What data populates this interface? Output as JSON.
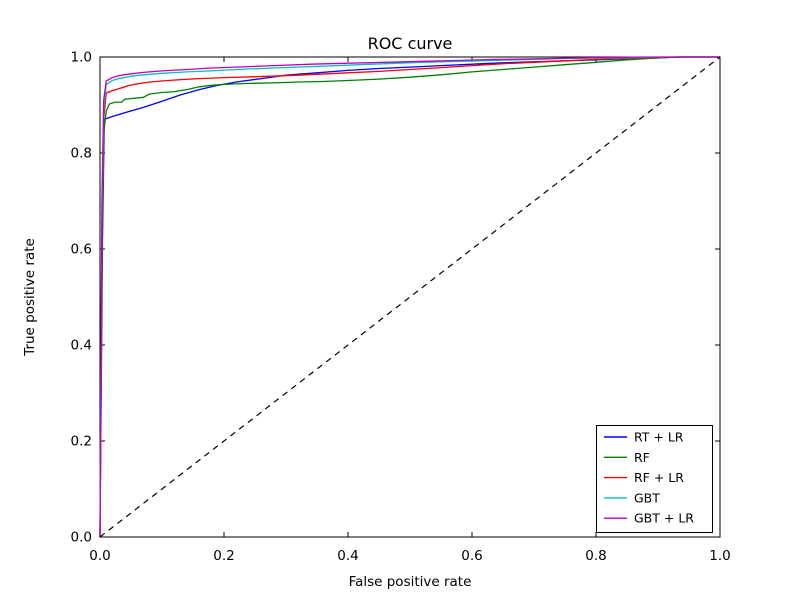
{
  "figure": {
    "background": "#ffffff",
    "frame_color": "#000000"
  },
  "chart_data": {
    "type": "line",
    "title": "ROC curve",
    "xlabel": "False positive rate",
    "ylabel": "True positive rate",
    "xlim": [
      0.0,
      1.0
    ],
    "ylim": [
      0.0,
      1.0
    ],
    "xticks": [
      0.0,
      0.2,
      0.4,
      0.6,
      0.8,
      1.0
    ],
    "yticks": [
      0.0,
      0.2,
      0.4,
      0.6,
      0.8,
      1.0
    ],
    "tick_decimals": 1,
    "grid": false,
    "legend_position": "lower right",
    "series": [
      {
        "name": "RT + LR",
        "color": "#0000ff",
        "points": [
          [
            0,
            0
          ],
          [
            0.004,
            0.62
          ],
          [
            0.007,
            0.87
          ],
          [
            0.02,
            0.876
          ],
          [
            0.04,
            0.884
          ],
          [
            0.07,
            0.895
          ],
          [
            0.1,
            0.908
          ],
          [
            0.13,
            0.921
          ],
          [
            0.16,
            0.932
          ],
          [
            0.19,
            0.941
          ],
          [
            0.22,
            0.948
          ],
          [
            0.26,
            0.955
          ],
          [
            0.3,
            0.962
          ],
          [
            0.35,
            0.967
          ],
          [
            0.4,
            0.972
          ],
          [
            0.45,
            0.976
          ],
          [
            0.5,
            0.979
          ],
          [
            0.55,
            0.982
          ],
          [
            0.6,
            0.985
          ],
          [
            0.65,
            0.988
          ],
          [
            0.7,
            0.99
          ],
          [
            0.75,
            0.992
          ],
          [
            0.8,
            0.994
          ],
          [
            0.85,
            0.996
          ],
          [
            0.9,
            0.998
          ],
          [
            0.93,
            1.0
          ],
          [
            1,
            1
          ]
        ]
      },
      {
        "name": "RF",
        "color": "#008000",
        "points": [
          [
            0,
            0
          ],
          [
            0.003,
            0.58
          ],
          [
            0.006,
            0.84
          ],
          [
            0.01,
            0.887
          ],
          [
            0.015,
            0.902
          ],
          [
            0.025,
            0.906
          ],
          [
            0.035,
            0.906
          ],
          [
            0.04,
            0.912
          ],
          [
            0.055,
            0.914
          ],
          [
            0.07,
            0.916
          ],
          [
            0.08,
            0.923
          ],
          [
            0.1,
            0.926
          ],
          [
            0.12,
            0.928
          ],
          [
            0.14,
            0.932
          ],
          [
            0.16,
            0.938
          ],
          [
            0.18,
            0.941
          ],
          [
            0.2,
            0.943
          ],
          [
            0.24,
            0.945
          ],
          [
            0.28,
            0.946
          ],
          [
            0.32,
            0.948
          ],
          [
            0.36,
            0.949
          ],
          [
            0.4,
            0.951
          ],
          [
            0.45,
            0.954
          ],
          [
            0.5,
            0.958
          ],
          [
            0.55,
            0.963
          ],
          [
            0.6,
            0.969
          ],
          [
            0.65,
            0.974
          ],
          [
            0.7,
            0.979
          ],
          [
            0.75,
            0.984
          ],
          [
            0.8,
            0.989
          ],
          [
            0.85,
            0.994
          ],
          [
            0.9,
            0.998
          ],
          [
            0.94,
            1.0
          ],
          [
            1,
            1
          ]
        ]
      },
      {
        "name": "RF + LR",
        "color": "#ff0000",
        "points": [
          [
            0,
            0
          ],
          [
            0.003,
            0.63
          ],
          [
            0.006,
            0.87
          ],
          [
            0.01,
            0.925
          ],
          [
            0.02,
            0.93
          ],
          [
            0.03,
            0.934
          ],
          [
            0.045,
            0.94
          ],
          [
            0.06,
            0.944
          ],
          [
            0.08,
            0.948
          ],
          [
            0.1,
            0.95
          ],
          [
            0.13,
            0.953
          ],
          [
            0.16,
            0.955
          ],
          [
            0.2,
            0.957
          ],
          [
            0.25,
            0.959
          ],
          [
            0.3,
            0.961
          ],
          [
            0.35,
            0.964
          ],
          [
            0.4,
            0.967
          ],
          [
            0.45,
            0.97
          ],
          [
            0.5,
            0.974
          ],
          [
            0.55,
            0.978
          ],
          [
            0.6,
            0.982
          ],
          [
            0.65,
            0.986
          ],
          [
            0.7,
            0.989
          ],
          [
            0.75,
            0.992
          ],
          [
            0.8,
            0.995
          ],
          [
            0.85,
            0.997
          ],
          [
            0.9,
            0.999
          ],
          [
            0.93,
            1.0
          ],
          [
            1,
            1
          ]
        ]
      },
      {
        "name": "GBT",
        "color": "#00bfbf",
        "points": [
          [
            0,
            0
          ],
          [
            0.003,
            0.66
          ],
          [
            0.006,
            0.89
          ],
          [
            0.01,
            0.943
          ],
          [
            0.02,
            0.951
          ],
          [
            0.03,
            0.955
          ],
          [
            0.05,
            0.96
          ],
          [
            0.07,
            0.963
          ],
          [
            0.1,
            0.966
          ],
          [
            0.14,
            0.969
          ],
          [
            0.18,
            0.971
          ],
          [
            0.22,
            0.974
          ],
          [
            0.28,
            0.977
          ],
          [
            0.34,
            0.98
          ],
          [
            0.4,
            0.983
          ],
          [
            0.46,
            0.986
          ],
          [
            0.52,
            0.989
          ],
          [
            0.58,
            0.991
          ],
          [
            0.64,
            0.993
          ],
          [
            0.7,
            0.995
          ],
          [
            0.76,
            0.997
          ],
          [
            0.82,
            0.998
          ],
          [
            0.88,
            0.999
          ],
          [
            0.92,
            1.0
          ],
          [
            1,
            1
          ]
        ]
      },
      {
        "name": "GBT + LR",
        "color": "#bf00bf",
        "points": [
          [
            0,
            0
          ],
          [
            0.003,
            0.7
          ],
          [
            0.006,
            0.91
          ],
          [
            0.01,
            0.95
          ],
          [
            0.02,
            0.957
          ],
          [
            0.03,
            0.961
          ],
          [
            0.05,
            0.965
          ],
          [
            0.07,
            0.968
          ],
          [
            0.1,
            0.971
          ],
          [
            0.14,
            0.974
          ],
          [
            0.18,
            0.977
          ],
          [
            0.22,
            0.979
          ],
          [
            0.28,
            0.982
          ],
          [
            0.34,
            0.985
          ],
          [
            0.4,
            0.987
          ],
          [
            0.46,
            0.989
          ],
          [
            0.52,
            0.991
          ],
          [
            0.58,
            0.993
          ],
          [
            0.64,
            0.995
          ],
          [
            0.7,
            0.996
          ],
          [
            0.76,
            0.998
          ],
          [
            0.82,
            0.999
          ],
          [
            0.88,
            1.0
          ],
          [
            1,
            1
          ]
        ]
      }
    ],
    "reference_line": {
      "name": "chance-diagonal",
      "color": "#000000",
      "style": "dashed",
      "points": [
        [
          0,
          0
        ],
        [
          1,
          1
        ]
      ]
    }
  }
}
